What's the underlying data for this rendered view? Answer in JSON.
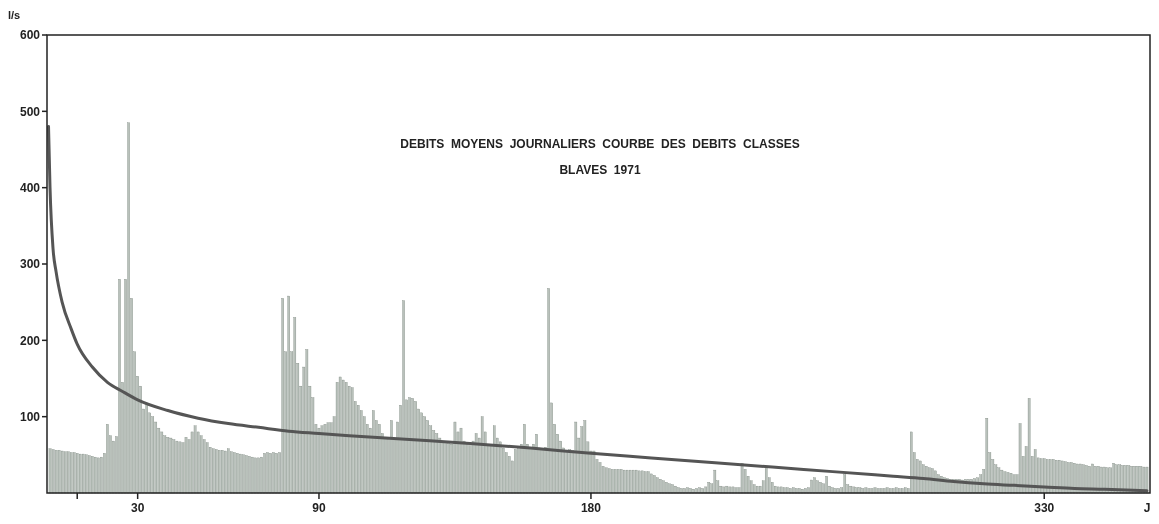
{
  "chart_data": {
    "type": "bar",
    "title": "DEBITS  MOYENS  JOURNALIERS  COURBE  DES  DEBITS  CLASSES",
    "subtitle": "BLAVES  1971",
    "xlabel": "J",
    "ylabel": "l/s",
    "xlim": [
      0,
      365
    ],
    "ylim": [
      0,
      600
    ],
    "xticks": [
      {
        "value": 10,
        "label": null
      },
      30,
      90,
      180,
      330
    ],
    "yticks": [
      100,
      200,
      300,
      400,
      500,
      600
    ],
    "series": [
      {
        "color": "#b9c1bb",
        "x": [
          1,
          2,
          3,
          4,
          5,
          6,
          7,
          8,
          9,
          10,
          11,
          12,
          13,
          14,
          15,
          16,
          17,
          18,
          19,
          20,
          21,
          22,
          23,
          24,
          25,
          26,
          27,
          28,
          29,
          30,
          31,
          32,
          33,
          34,
          35,
          36,
          37,
          38,
          39,
          40,
          41,
          42,
          43,
          44,
          45,
          46,
          47,
          48,
          49,
          50,
          51,
          52,
          53,
          54,
          55,
          56,
          57,
          58,
          59,
          60,
          61,
          62,
          63,
          64,
          65,
          66,
          67,
          68,
          69,
          70,
          71,
          72,
          73,
          74,
          75,
          76,
          77,
          78,
          79,
          80,
          81,
          82,
          83,
          84,
          85,
          86,
          87,
          88,
          89,
          90,
          91,
          92,
          93,
          94,
          95,
          96,
          97,
          98,
          99,
          100,
          101,
          102,
          103,
          104,
          105,
          106,
          107,
          108,
          109,
          110,
          111,
          112,
          113,
          114,
          115,
          116,
          117,
          118,
          119,
          120,
          121,
          122,
          123,
          124,
          125,
          126,
          127,
          128,
          129,
          130,
          131,
          132,
          133,
          134,
          135,
          136,
          137,
          138,
          139,
          140,
          141,
          142,
          143,
          144,
          145,
          146,
          147,
          148,
          149,
          150,
          151,
          152,
          153,
          154,
          155,
          156,
          157,
          158,
          159,
          160,
          161,
          162,
          163,
          164,
          165,
          166,
          167,
          168,
          169,
          170,
          171,
          172,
          173,
          174,
          175,
          176,
          177,
          178,
          179,
          180,
          181,
          182,
          183,
          184,
          185,
          186,
          187,
          188,
          189,
          190,
          191,
          192,
          193,
          194,
          195,
          196,
          197,
          198,
          199,
          200,
          201,
          202,
          203,
          204,
          205,
          206,
          207,
          208,
          209,
          210,
          211,
          212,
          213,
          214,
          215,
          216,
          217,
          218,
          219,
          220,
          221,
          222,
          223,
          224,
          225,
          226,
          227,
          228,
          229,
          230,
          231,
          232,
          233,
          234,
          235,
          236,
          237,
          238,
          239,
          240,
          241,
          242,
          243,
          244,
          245,
          246,
          247,
          248,
          249,
          250,
          251,
          252,
          253,
          254,
          255,
          256,
          257,
          258,
          259,
          260,
          261,
          262,
          263,
          264,
          265,
          266,
          267,
          268,
          269,
          270,
          271,
          272,
          273,
          274,
          275,
          276,
          277,
          278,
          279,
          280,
          281,
          282,
          283,
          284,
          285,
          286,
          287,
          288,
          289,
          290,
          291,
          292,
          293,
          294,
          295,
          296,
          297,
          298,
          299,
          300,
          301,
          302,
          303,
          304,
          305,
          306,
          307,
          308,
          309,
          310,
          311,
          312,
          313,
          314,
          315,
          316,
          317,
          318,
          319,
          320,
          321,
          322,
          323,
          324,
          325,
          326,
          327,
          328,
          329,
          330,
          331,
          332,
          333,
          334,
          335,
          336,
          337,
          338,
          339,
          340,
          341,
          342,
          343,
          344,
          345,
          346,
          347,
          348,
          349,
          350,
          351,
          352,
          353,
          354,
          355,
          356,
          357,
          358,
          359,
          360,
          361,
          362,
          363,
          364
        ],
        "values": [
          58,
          57,
          56,
          56,
          55,
          54,
          54,
          53,
          53,
          52,
          51,
          51,
          50,
          49,
          48,
          47,
          46,
          47,
          52,
          90,
          75,
          68,
          74,
          280,
          145,
          280,
          485,
          255,
          185,
          153,
          140,
          110,
          118,
          105,
          100,
          93,
          85,
          80,
          75,
          73,
          72,
          70,
          68,
          67,
          66,
          73,
          70,
          80,
          88,
          80,
          75,
          70,
          66,
          60,
          58,
          57,
          56,
          56,
          55,
          58,
          54,
          53,
          52,
          51,
          50,
          49,
          48,
          47,
          46,
          46,
          47,
          52,
          53,
          52,
          53,
          52,
          53,
          255,
          185,
          258,
          185,
          230,
          170,
          140,
          165,
          188,
          140,
          125,
          90,
          85,
          88,
          90,
          92,
          92,
          100,
          145,
          152,
          148,
          145,
          140,
          138,
          120,
          115,
          108,
          100,
          90,
          85,
          108,
          95,
          90,
          78,
          72,
          70,
          95,
          70,
          93,
          115,
          252,
          122,
          125,
          124,
          120,
          110,
          105,
          100,
          95,
          88,
          82,
          78,
          72,
          68,
          66,
          65,
          64,
          93,
          80,
          85,
          68,
          64,
          62,
          68,
          78,
          72,
          100,
          80,
          64,
          62,
          88,
          72,
          67,
          59,
          53,
          48,
          42,
          57,
          58,
          64,
          90,
          64,
          59,
          64,
          77,
          59,
          57,
          60,
          268,
          118,
          90,
          77,
          68,
          59,
          55,
          57,
          56,
          93,
          72,
          87,
          95,
          67,
          55,
          55,
          44,
          40,
          35,
          33,
          32,
          31,
          31,
          31,
          31,
          30,
          30,
          30,
          30,
          30,
          29,
          29,
          28,
          28,
          25,
          23,
          20,
          18,
          16,
          14,
          12,
          11,
          9,
          7,
          6,
          6,
          7,
          6,
          5,
          6,
          7,
          6,
          8,
          14,
          12,
          30,
          16,
          9,
          8,
          9,
          8,
          8,
          7,
          7,
          39,
          31,
          22,
          16,
          11,
          9,
          9,
          16,
          33,
          20,
          14,
          9,
          8,
          8,
          7,
          7,
          6,
          7,
          6,
          6,
          5,
          6,
          7,
          17,
          20,
          16,
          14,
          12,
          22,
          9,
          7,
          6,
          6,
          7,
          24,
          11,
          9,
          8,
          7,
          7,
          6,
          7,
          6,
          6,
          7,
          6,
          6,
          6,
          7,
          6,
          6,
          7,
          6,
          6,
          7,
          6,
          80,
          53,
          44,
          42,
          37,
          35,
          33,
          32,
          29,
          24,
          22,
          20,
          19,
          18,
          18,
          18,
          18,
          17,
          18,
          18,
          18,
          19,
          20,
          24,
          31,
          98,
          53,
          44,
          37,
          33,
          30,
          28,
          27,
          26,
          24,
          24,
          91,
          48,
          61,
          124,
          48,
          57,
          46,
          45,
          45,
          44,
          44,
          44,
          43,
          43,
          42,
          41,
          40,
          40,
          39,
          38,
          38,
          37,
          36,
          35,
          38,
          35,
          35,
          34,
          34,
          33,
          33,
          39,
          37,
          37,
          36,
          36,
          36,
          35,
          35,
          35,
          35,
          34,
          34
        ]
      },
      {
        "type": "line",
        "color": "#555555",
        "x": [
          0.5,
          1,
          2,
          3,
          5,
          8,
          10,
          15,
          20,
          25,
          30,
          40,
          50,
          60,
          70,
          80,
          90,
          100,
          120,
          140,
          160,
          180,
          200,
          220,
          240,
          260,
          280,
          290,
          300,
          310,
          320,
          330,
          340,
          350,
          364
        ],
        "values": [
          480,
          400,
          320,
          290,
          250,
          215,
          195,
          165,
          145,
          133,
          122,
          108,
          98,
          91,
          86,
          81,
          78,
          75,
          70,
          65,
          59,
          52,
          46,
          40,
          34,
          28,
          22,
          19,
          15,
          12,
          10,
          8,
          6,
          5,
          3
        ]
      }
    ]
  }
}
